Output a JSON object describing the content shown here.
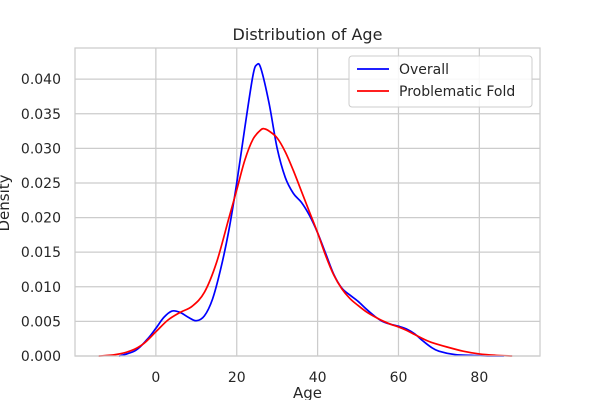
{
  "chart_data": {
    "type": "line",
    "title": "Distribution of Age",
    "xlabel": "Age",
    "ylabel": "Density",
    "xlim": [
      -20,
      95
    ],
    "ylim": [
      0,
      0.0445
    ],
    "x_ticks": [
      0,
      20,
      40,
      60,
      80
    ],
    "x_tick_labels": [
      "0",
      "20",
      "40",
      "60",
      "80"
    ],
    "y_ticks": [
      0.0,
      0.005,
      0.01,
      0.015,
      0.02,
      0.025,
      0.03,
      0.035,
      0.04
    ],
    "y_tick_labels": [
      "0.000",
      "0.005",
      "0.010",
      "0.015",
      "0.020",
      "0.025",
      "0.030",
      "0.035",
      "0.040"
    ],
    "grid": true,
    "legend_position": "top-right",
    "series": [
      {
        "name": "Overall",
        "color": "#0000ff",
        "x": [
          -9,
          -5,
          -2,
          0,
          2,
          4,
          6,
          8,
          10,
          12,
          14,
          16,
          18,
          20,
          22,
          24,
          25,
          26,
          28,
          30,
          32,
          34,
          36,
          38,
          40,
          42,
          44,
          46,
          48,
          50,
          52,
          54,
          56,
          58,
          60,
          62,
          64,
          66,
          68,
          70,
          74,
          78,
          82,
          86
        ],
        "y": [
          0.0,
          0.0008,
          0.0025,
          0.004,
          0.0056,
          0.0065,
          0.0063,
          0.0056,
          0.0051,
          0.0058,
          0.0082,
          0.0125,
          0.018,
          0.025,
          0.033,
          0.0405,
          0.0421,
          0.0415,
          0.0365,
          0.03,
          0.0258,
          0.0235,
          0.0222,
          0.0203,
          0.0178,
          0.0148,
          0.0118,
          0.0098,
          0.0088,
          0.0079,
          0.0068,
          0.0058,
          0.005,
          0.0046,
          0.0043,
          0.0039,
          0.0032,
          0.0022,
          0.0013,
          0.0007,
          0.0002,
          0.0001,
          0.0,
          0.0
        ]
      },
      {
        "name": "Problematic Fold",
        "color": "#ff0000",
        "x": [
          -14,
          -10,
          -6,
          -3,
          0,
          3,
          6,
          9,
          12,
          15,
          18,
          20,
          22,
          24,
          26,
          27,
          28,
          30,
          32,
          34,
          36,
          38,
          40,
          42,
          44,
          46,
          48,
          50,
          52,
          54,
          56,
          58,
          60,
          62,
          64,
          66,
          68,
          72,
          76,
          80,
          84,
          88
        ],
        "y": [
          0.0,
          0.0002,
          0.0008,
          0.0018,
          0.0035,
          0.0052,
          0.0063,
          0.0072,
          0.0092,
          0.0135,
          0.0198,
          0.024,
          0.0283,
          0.0313,
          0.0327,
          0.0328,
          0.0325,
          0.0315,
          0.0295,
          0.0268,
          0.0238,
          0.0208,
          0.0178,
          0.0145,
          0.0117,
          0.0097,
          0.0083,
          0.0073,
          0.0064,
          0.0057,
          0.0051,
          0.0046,
          0.0042,
          0.0037,
          0.0031,
          0.0025,
          0.002,
          0.0013,
          0.0007,
          0.0003,
          0.0001,
          0.0
        ]
      }
    ]
  }
}
